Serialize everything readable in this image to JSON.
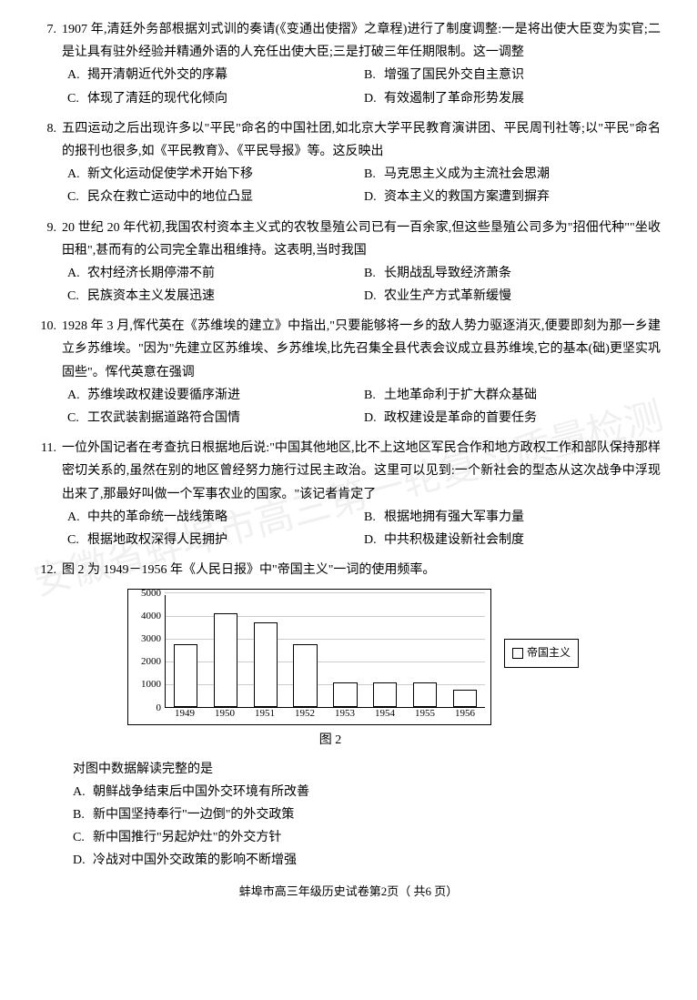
{
  "questions": [
    {
      "num": "7.",
      "stem": "1907 年,清廷外务部根据刘式训的奏请(《变通出使摺》之章程)进行了制度调整:一是将出使大臣变为实官;二是让具有驻外经验并精通外语的人充任出使大臣;三是打破三年任期限制。这一调整",
      "opts": [
        {
          "l": "A.",
          "t": "揭开清朝近代外交的序幕"
        },
        {
          "l": "B.",
          "t": "增强了国民外交自主意识"
        },
        {
          "l": "C.",
          "t": "体现了清廷的现代化倾向"
        },
        {
          "l": "D.",
          "t": "有效遏制了革命形势发展"
        }
      ],
      "layout": "2col"
    },
    {
      "num": "8.",
      "stem": "五四运动之后出现许多以\"平民\"命名的中国社团,如北京大学平民教育演讲团、平民周刊社等;以\"平民\"命名的报刊也很多,如《平民教育》、《平民导报》等。这反映出",
      "opts": [
        {
          "l": "A.",
          "t": "新文化运动促使学术开始下移"
        },
        {
          "l": "B.",
          "t": "马克思主义成为主流社会思潮"
        },
        {
          "l": "C.",
          "t": "民众在救亡运动中的地位凸显"
        },
        {
          "l": "D.",
          "t": "资本主义的救国方案遭到摒弃"
        }
      ],
      "layout": "2col"
    },
    {
      "num": "9.",
      "stem": "20 世纪 20 年代初,我国农村资本主义式的农牧垦殖公司已有一百余家,但这些垦殖公司多为\"招佃代种\"\"坐收田租\",甚而有的公司完全靠出租维持。这表明,当时我国",
      "opts": [
        {
          "l": "A.",
          "t": "农村经济长期停滞不前"
        },
        {
          "l": "B.",
          "t": "长期战乱导致经济萧条"
        },
        {
          "l": "C.",
          "t": "民族资本主义发展迅速"
        },
        {
          "l": "D.",
          "t": "农业生产方式革新缓慢"
        }
      ],
      "layout": "2col"
    },
    {
      "num": "10.",
      "stem": "1928 年 3 月,恽代英在《苏维埃的建立》中指出,\"只要能够将一乡的敌人势力驱逐消灭,便要即刻为那一乡建立乡苏维埃。\"因为\"先建立区苏维埃、乡苏维埃,比先召集全县代表会议成立县苏维埃,它的基本(础)更坚实巩固些\"。恽代英意在强调",
      "opts": [
        {
          "l": "A.",
          "t": "苏维埃政权建设要循序渐进"
        },
        {
          "l": "B.",
          "t": "土地革命利于扩大群众基础"
        },
        {
          "l": "C.",
          "t": "工农武装割据道路符合国情"
        },
        {
          "l": "D.",
          "t": "政权建设是革命的首要任务"
        }
      ],
      "layout": "2col"
    },
    {
      "num": "11.",
      "stem": "一位外国记者在考查抗日根据地后说:\"中国其他地区,比不上这地区军民合作和地方政权工作和部队保持那样密切关系的,虽然在别的地区曾经努力施行过民主政治。这里可以见到:一个新社会的型态从这次战争中浮现出来了,那最好叫做一个军事农业的国家。\"该记者肯定了",
      "opts": [
        {
          "l": "A.",
          "t": "中共的革命统一战线策略"
        },
        {
          "l": "B.",
          "t": "根据地拥有强大军事力量"
        },
        {
          "l": "C.",
          "t": "根据地政权深得人民拥护"
        },
        {
          "l": "D.",
          "t": "中共积极建设新社会制度"
        }
      ],
      "layout": "2col"
    },
    {
      "num": "12.",
      "stem": "图 2 为 1949－1956 年《人民日报》中\"帝国主义\"一词的使用频率。",
      "opts": [],
      "layout": "none"
    }
  ],
  "chart": {
    "type": "bar",
    "categories": [
      "1949",
      "1950",
      "1951",
      "1952",
      "1953",
      "1954",
      "1955",
      "1956"
    ],
    "values": [
      2800,
      4200,
      3800,
      2800,
      1100,
      1100,
      1100,
      800
    ],
    "ymax": 5000,
    "yticks": [
      0,
      1000,
      2000,
      3000,
      4000,
      5000
    ],
    "bar_border": "#000000",
    "bar_fill": "#ffffff",
    "grid_color": "#cccccc",
    "legend_label": "帝国主义",
    "caption": "图 2"
  },
  "q12_tail": {
    "prompt": "对图中数据解读完整的是",
    "opts": [
      {
        "l": "A.",
        "t": "朝鲜战争结束后中国外交环境有所改善"
      },
      {
        "l": "B.",
        "t": "新中国坚持奉行\"一边倒\"的外交政策"
      },
      {
        "l": "C.",
        "t": "新中国推行\"另起炉灶\"的外交方针"
      },
      {
        "l": "D.",
        "t": "冷战对中国外交政策的影响不断增强"
      }
    ]
  },
  "footer": "蚌埠市高三年级历史试卷第2页（ 共6 页）",
  "watermark": "安徽省蚌埠市高三第一轮复习质量检测"
}
